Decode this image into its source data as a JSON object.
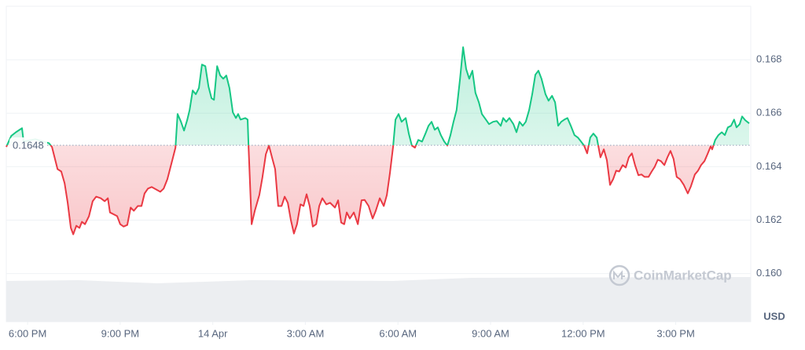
{
  "chart_data": {
    "type": "line",
    "ylabel": "USD",
    "watermark": "CoinMarketCap",
    "baseline": 0.1648,
    "up_color": "#16c784",
    "down_color": "#ea3943",
    "grid": true,
    "xlim": [
      -0.69,
      23.43
    ],
    "ylim": [
      0.1582,
      0.17
    ],
    "xticks": [
      {
        "value": 0,
        "label": "6:00 PM"
      },
      {
        "value": 3,
        "label": "9:00 PM"
      },
      {
        "value": 6,
        "label": "14 Apr"
      },
      {
        "value": 9,
        "label": "3:00 AM"
      },
      {
        "value": 12,
        "label": "6:00 AM"
      },
      {
        "value": 15,
        "label": "9:00 AM"
      },
      {
        "value": 18,
        "label": "12:00 PM"
      },
      {
        "value": 21,
        "label": "3:00 PM"
      }
    ],
    "yticks": [
      {
        "value": 0.16,
        "label": "0.160"
      },
      0.162,
      0.164,
      0.166,
      0.168
    ],
    "x": [
      -0.69,
      -0.53,
      -0.38,
      -0.18,
      -0.13,
      0.25,
      0.69,
      0.79,
      0.97,
      1.09,
      1.2,
      1.3,
      1.4,
      1.48,
      1.58,
      1.68,
      1.76,
      1.86,
      1.99,
      2.11,
      2.22,
      2.37,
      2.5,
      2.6,
      2.67,
      2.9,
      3.0,
      3.11,
      3.23,
      3.34,
      3.44,
      3.57,
      3.69,
      3.79,
      3.9,
      4.02,
      4.3,
      4.41,
      4.53,
      4.66,
      4.79,
      4.86,
      4.97,
      5.07,
      5.17,
      5.25,
      5.35,
      5.45,
      5.55,
      5.65,
      5.76,
      5.86,
      5.96,
      6.04,
      6.14,
      6.24,
      6.34,
      6.44,
      6.54,
      6.65,
      6.75,
      6.82,
      6.9,
      7.05,
      7.13,
      7.16,
      7.26,
      7.36,
      7.51,
      7.61,
      7.72,
      7.82,
      7.92,
      8.02,
      8.12,
      8.23,
      8.33,
      8.43,
      8.53,
      8.63,
      8.73,
      8.84,
      8.94,
      9.04,
      9.14,
      9.24,
      9.35,
      9.45,
      9.55,
      9.68,
      9.8,
      9.96,
      10.06,
      10.16,
      10.26,
      10.34,
      10.44,
      10.57,
      10.7,
      10.82,
      10.92,
      11.05,
      11.18,
      11.28,
      11.41,
      11.54,
      11.64,
      11.74,
      11.84,
      11.92,
      12.02,
      12.12,
      12.25,
      12.35,
      12.45,
      12.55,
      12.66,
      12.78,
      12.89,
      12.99,
      13.09,
      13.19,
      13.29,
      13.39,
      13.5,
      13.6,
      13.7,
      13.8,
      13.9,
      14.01,
      14.11,
      14.21,
      14.31,
      14.41,
      14.51,
      14.62,
      14.72,
      14.85,
      14.95,
      15.08,
      15.2,
      15.33,
      15.41,
      15.51,
      15.61,
      15.74,
      15.84,
      15.94,
      16.04,
      16.14,
      16.25,
      16.35,
      16.45,
      16.55,
      16.65,
      16.78,
      16.88,
      16.99,
      17.09,
      17.19,
      17.29,
      17.39,
      17.49,
      17.6,
      17.72,
      17.83,
      17.93,
      18.03,
      18.13,
      18.23,
      18.33,
      18.44,
      18.56,
      18.67,
      18.77,
      18.87,
      18.97,
      19.07,
      19.17,
      19.28,
      19.38,
      19.48,
      19.58,
      19.68,
      19.79,
      19.89,
      19.99,
      20.12,
      20.22,
      20.32,
      20.42,
      20.52,
      20.63,
      20.73,
      20.83,
      20.93,
      21.03,
      21.14,
      21.26,
      21.39,
      21.49,
      21.62,
      21.72,
      21.82,
      21.93,
      22.03,
      22.13,
      22.18,
      22.28,
      22.38,
      22.49,
      22.59,
      22.69,
      22.79,
      22.89,
      22.97,
      23.07,
      23.15,
      23.25,
      23.38
    ],
    "values": [
      0.16474,
      0.16515,
      0.16529,
      0.16544,
      0.16494,
      0.16503,
      0.16488,
      0.16474,
      0.16391,
      0.16382,
      0.16338,
      0.16265,
      0.16171,
      0.16147,
      0.16179,
      0.16171,
      0.16194,
      0.16185,
      0.16215,
      0.16271,
      0.16288,
      0.16282,
      0.16271,
      0.16282,
      0.16229,
      0.16215,
      0.16185,
      0.16176,
      0.16182,
      0.16247,
      0.16235,
      0.16253,
      0.16253,
      0.163,
      0.16318,
      0.16324,
      0.16306,
      0.16318,
      0.16353,
      0.16412,
      0.16471,
      0.16597,
      0.16568,
      0.16535,
      0.16574,
      0.16612,
      0.16685,
      0.16671,
      0.16694,
      0.16782,
      0.16776,
      0.167,
      0.16656,
      0.1665,
      0.16776,
      0.16741,
      0.16729,
      0.16741,
      0.16694,
      0.16603,
      0.16582,
      0.16597,
      0.16576,
      0.16582,
      0.16576,
      0.16474,
      0.16185,
      0.16235,
      0.16294,
      0.16362,
      0.16447,
      0.16479,
      0.16435,
      0.16391,
      0.16253,
      0.16253,
      0.16288,
      0.16265,
      0.162,
      0.1615,
      0.16185,
      0.16259,
      0.16253,
      0.16297,
      0.16253,
      0.16176,
      0.16185,
      0.16253,
      0.16282,
      0.16259,
      0.16265,
      0.16247,
      0.16274,
      0.16191,
      0.16185,
      0.16229,
      0.16206,
      0.16229,
      0.16185,
      0.16274,
      0.16276,
      0.16253,
      0.16206,
      0.16235,
      0.16282,
      0.16253,
      0.16294,
      0.16376,
      0.16474,
      0.16576,
      0.16597,
      0.16568,
      0.16582,
      0.16524,
      0.16479,
      0.16471,
      0.165,
      0.16494,
      0.16524,
      0.16553,
      0.16568,
      0.16538,
      0.16547,
      0.16518,
      0.16494,
      0.16479,
      0.16518,
      0.16568,
      0.16612,
      0.16729,
      0.16847,
      0.16765,
      0.16729,
      0.16759,
      0.16676,
      0.16641,
      0.16597,
      0.16576,
      0.16559,
      0.16568,
      0.16571,
      0.16553,
      0.16582,
      0.16568,
      0.16582,
      0.16559,
      0.16529,
      0.16568,
      0.16553,
      0.16568,
      0.16612,
      0.16671,
      0.16744,
      0.16759,
      0.16729,
      0.16671,
      0.16647,
      0.16665,
      0.16641,
      0.16553,
      0.16568,
      0.16576,
      0.16582,
      0.16553,
      0.16518,
      0.16509,
      0.16494,
      0.16479,
      0.1645,
      0.16509,
      0.16524,
      0.16509,
      0.16435,
      0.16465,
      0.16424,
      0.16332,
      0.16353,
      0.16385,
      0.16382,
      0.16406,
      0.16397,
      0.16435,
      0.1645,
      0.16406,
      0.16368,
      0.16371,
      0.16362,
      0.16362,
      0.16382,
      0.164,
      0.16426,
      0.16421,
      0.16406,
      0.16435,
      0.16459,
      0.16429,
      0.16362,
      0.16353,
      0.16332,
      0.163,
      0.16326,
      0.16371,
      0.16385,
      0.16406,
      0.16421,
      0.16447,
      0.16476,
      0.16465,
      0.165,
      0.16518,
      0.16529,
      0.16518,
      0.16547,
      0.16553,
      0.16576,
      0.16547,
      0.16559,
      0.16588,
      0.16574,
      0.16562
    ]
  }
}
